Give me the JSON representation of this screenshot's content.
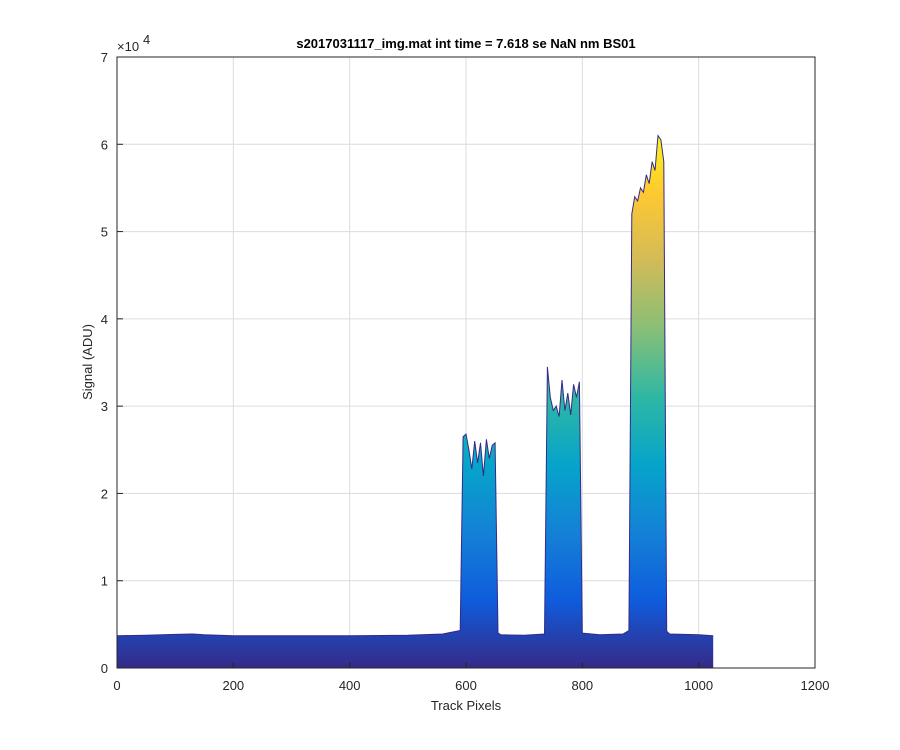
{
  "chart_data": {
    "type": "area",
    "title": "s2017031117_img.mat int time = 7.618 se  NaN nm BS01",
    "xlabel": "Track Pixels",
    "ylabel": "Signal (ADU)",
    "xlim": [
      0,
      1200
    ],
    "ylim": [
      0,
      70000
    ],
    "x_ticks": [
      "0",
      "200",
      "400",
      "600",
      "800",
      "1000",
      "1200"
    ],
    "y_ticks": [
      "0",
      "1",
      "2",
      "3",
      "4",
      "5",
      "6",
      "7"
    ],
    "y_exponent_label": "×10",
    "y_exponent_power": "4",
    "grid": true,
    "colormap": "parula",
    "colors": [
      "#352a87",
      "#0f5cdd",
      "#1481d6",
      "#06a4ca",
      "#2eb7a4",
      "#87bf77",
      "#d1bb59",
      "#fec832",
      "#f9fb0e"
    ],
    "series": [
      {
        "x": [
          0,
          50,
          100,
          130,
          150,
          200,
          300,
          400,
          500,
          560,
          590,
          595,
          600,
          605,
          610,
          615,
          620,
          625,
          630,
          635,
          640,
          645,
          650,
          655,
          660,
          700,
          735,
          740,
          745,
          750,
          755,
          760,
          765,
          770,
          775,
          780,
          785,
          790,
          795,
          800,
          830,
          870,
          880,
          885,
          890,
          895,
          900,
          905,
          910,
          915,
          920,
          925,
          930,
          935,
          940,
          945,
          950,
          1000,
          1025
        ],
        "y": [
          3700,
          3750,
          3850,
          3900,
          3800,
          3700,
          3700,
          3700,
          3750,
          3900,
          4300,
          26500,
          26800,
          25000,
          22800,
          26000,
          23500,
          25800,
          22000,
          26200,
          24000,
          25500,
          25800,
          4000,
          3800,
          3750,
          3900,
          34500,
          31000,
          29500,
          30000,
          28800,
          33000,
          29500,
          31500,
          29000,
          32500,
          31000,
          32800,
          4000,
          3800,
          3900,
          4300,
          52000,
          54000,
          53500,
          55000,
          54500,
          56500,
          55500,
          58000,
          57000,
          61000,
          60500,
          58000,
          4200,
          3900,
          3800,
          3700
        ]
      }
    ]
  }
}
